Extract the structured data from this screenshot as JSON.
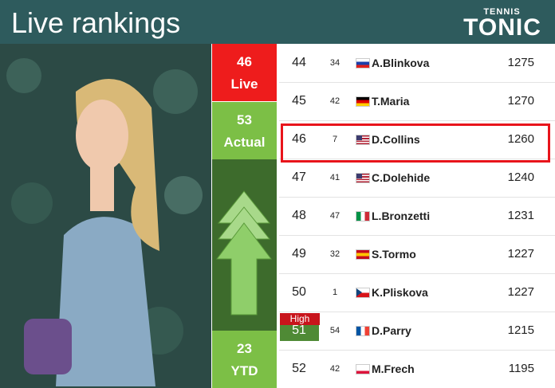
{
  "header": {
    "title": "Live rankings",
    "logo_top": "TENNIS",
    "logo_main": "TONIC"
  },
  "summary": {
    "live": {
      "value": 46,
      "label": "Live"
    },
    "actual": {
      "value": 53,
      "label": "Actual"
    },
    "ytd": {
      "value": 23,
      "label": "YTD"
    }
  },
  "high_label": "High",
  "rankings": {
    "rows": [
      [
        44,
        34,
        "A.Blinkova",
        1275
      ],
      [
        45,
        42,
        "T.Maria",
        1270
      ],
      [
        46,
        7,
        "D.Collins",
        1260
      ],
      [
        47,
        41,
        "C.Dolehide",
        1240
      ],
      [
        48,
        47,
        "L.Bronzetti",
        1231
      ],
      [
        49,
        32,
        "S.Tormo",
        1227
      ],
      [
        50,
        1,
        "K.Pliskova",
        1227
      ],
      [
        51,
        54,
        "D.Parry",
        1215
      ],
      [
        52,
        42,
        "M.Frech",
        1195
      ]
    ]
  }
}
